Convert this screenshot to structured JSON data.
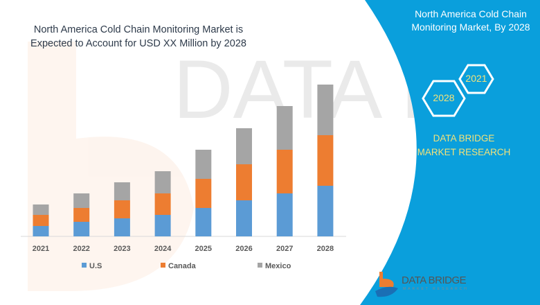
{
  "header": {
    "title": "North America Cold Chain Monitoring Market is Expected to Account for USD XX Million by 2028"
  },
  "side_panel": {
    "title": "North America Cold Chain Monitoring Market, By 2028",
    "hex_years": [
      "2028",
      "2021"
    ],
    "brand_text": "DATA BRIDGE MARKET RESEARCH",
    "logo_text": "DATA BRIDGE",
    "logo_subtext": "MARKET RESEARCH",
    "panel_color": "#0a9fdc"
  },
  "chart_data": {
    "type": "bar",
    "stacked": true,
    "title": "",
    "xlabel": "",
    "ylabel": "",
    "grid": false,
    "legend_position": "bottom",
    "categories": [
      "2021",
      "2022",
      "2023",
      "2024",
      "2025",
      "2026",
      "2027",
      "2028"
    ],
    "series": [
      {
        "name": "U.S",
        "color": "#5b9bd5",
        "values": [
          15,
          21,
          26,
          31,
          41,
          52,
          62,
          73
        ]
      },
      {
        "name": "Canada",
        "color": "#ed7d31",
        "values": [
          16,
          20,
          26,
          31,
          42,
          52,
          63,
          73
        ]
      },
      {
        "name": "Mexico",
        "color": "#a5a5a5",
        "values": [
          15,
          21,
          26,
          32,
          42,
          52,
          63,
          73
        ]
      }
    ],
    "note": "no value axis shown; values are relative"
  }
}
